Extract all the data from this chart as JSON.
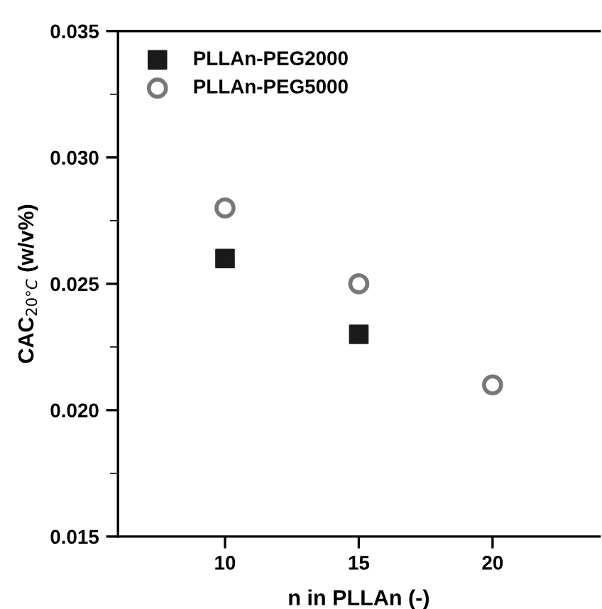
{
  "chart_data": {
    "type": "scatter",
    "xlabel": "n in PLLAn (-)",
    "ylabel": "CAC$_{20°C}$ (w/v%)",
    "xlim": [
      6,
      24
    ],
    "xticks": [
      10,
      15,
      20
    ],
    "ylim": [
      0.015,
      0.035
    ],
    "yticks": [
      0.015,
      {
        "value": 0.02,
        "label": "0.020"
      },
      0.025,
      {
        "value": 0.03,
        "label": "0.030"
      },
      0.035
    ],
    "grid": false,
    "legend": "top left",
    "series": [
      {
        "name": "PLLAn-PEG2000",
        "color": "#1a1a1a",
        "marker": "square",
        "x": [
          10,
          15
        ],
        "values": [
          0.026,
          0.023
        ]
      },
      {
        "name": "PLLAn-PEG5000",
        "color": "#777777",
        "marker": "circle",
        "x": [
          10,
          15,
          20
        ],
        "values": [
          0.028,
          0.025,
          0.021
        ]
      }
    ]
  }
}
